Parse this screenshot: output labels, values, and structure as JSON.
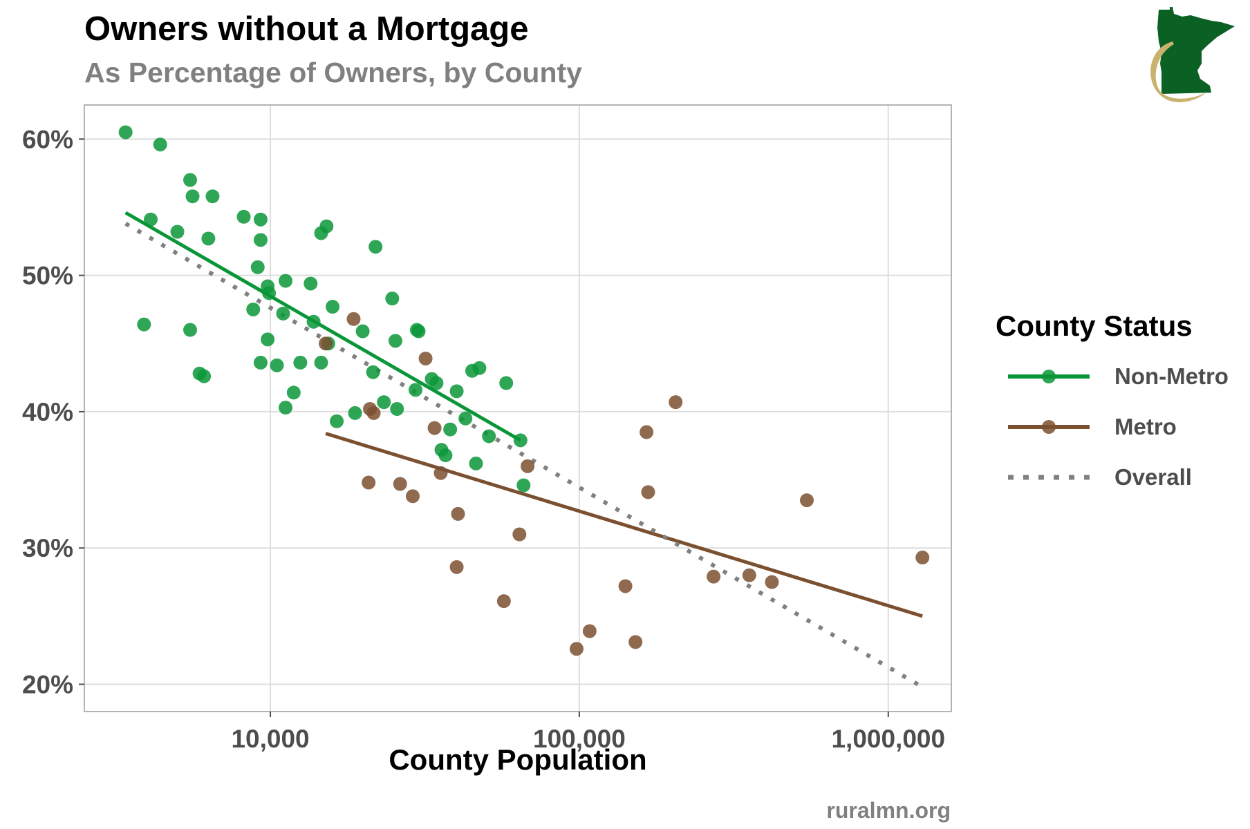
{
  "header": {
    "title": "Owners without a Mortgage",
    "subtitle": "As Percentage of Owners, by County"
  },
  "logo": {
    "icon": "minnesota-state-logo-icon",
    "fill": "#0b6123",
    "swoosh": "#c9b26d"
  },
  "caption": "ruralmn.org",
  "legend": {
    "title": "County Status",
    "items": [
      {
        "label": "Non-Metro",
        "key": "line-point",
        "color": "#0a9638"
      },
      {
        "label": "Metro",
        "key": "line-point",
        "color": "#7b5030"
      },
      {
        "label": "Overall",
        "key": "dotted-line",
        "color": "#808080"
      }
    ]
  },
  "chart_data": {
    "type": "scatter",
    "title": "Owners without a Mortgage",
    "subtitle": "As Percentage of Owners, by County",
    "xlabel": "County Population",
    "ylabel": "",
    "x_scale": "log10",
    "xlim": [
      2500,
      1600000
    ],
    "ylim": [
      18,
      62.5
    ],
    "x_ticks": [
      10000,
      100000,
      1000000
    ],
    "x_tick_labels": [
      "10,000",
      "100,000",
      "1,000,000"
    ],
    "y_ticks": [
      20,
      30,
      40,
      50,
      60
    ],
    "y_tick_labels": [
      "20%",
      "30%",
      "40%",
      "50%",
      "60%"
    ],
    "grid": true,
    "legend_position": "right",
    "series": [
      {
        "name": "Non-Metro",
        "color": "#0a9638",
        "points": [
          [
            3400,
            60.5
          ],
          [
            4400,
            59.6
          ],
          [
            3900,
            46.4
          ],
          [
            4100,
            54.1
          ],
          [
            5000,
            53.2
          ],
          [
            5500,
            57.0
          ],
          [
            5600,
            55.8
          ],
          [
            6500,
            55.8
          ],
          [
            6300,
            52.7
          ],
          [
            5500,
            46.0
          ],
          [
            5900,
            42.8
          ],
          [
            6100,
            42.6
          ],
          [
            8200,
            54.3
          ],
          [
            9300,
            54.1
          ],
          [
            9300,
            52.6
          ],
          [
            9100,
            50.6
          ],
          [
            9800,
            49.2
          ],
          [
            9900,
            48.7
          ],
          [
            8800,
            47.5
          ],
          [
            9800,
            45.3
          ],
          [
            9300,
            43.6
          ],
          [
            10500,
            43.4
          ],
          [
            11000,
            47.2
          ],
          [
            11200,
            49.6
          ],
          [
            11200,
            40.3
          ],
          [
            11900,
            41.4
          ],
          [
            12500,
            43.6
          ],
          [
            13500,
            49.4
          ],
          [
            13800,
            46.6
          ],
          [
            14600,
            53.1
          ],
          [
            15200,
            53.6
          ],
          [
            14600,
            43.6
          ],
          [
            15400,
            45.0
          ],
          [
            15900,
            47.7
          ],
          [
            16400,
            39.3
          ],
          [
            18800,
            39.9
          ],
          [
            19900,
            45.9
          ],
          [
            21900,
            52.1
          ],
          [
            21500,
            42.9
          ],
          [
            23300,
            40.7
          ],
          [
            24800,
            48.3
          ],
          [
            25400,
            45.2
          ],
          [
            25700,
            40.2
          ],
          [
            29800,
            46.0
          ],
          [
            30200,
            45.9
          ],
          [
            29500,
            41.6
          ],
          [
            33300,
            42.4
          ],
          [
            34500,
            42.1
          ],
          [
            35800,
            37.2
          ],
          [
            36900,
            36.8
          ],
          [
            38200,
            38.7
          ],
          [
            40100,
            41.5
          ],
          [
            42800,
            39.5
          ],
          [
            45000,
            43.0
          ],
          [
            47500,
            43.2
          ],
          [
            46300,
            36.2
          ],
          [
            51000,
            38.2
          ],
          [
            58000,
            42.1
          ],
          [
            64500,
            37.9
          ],
          [
            66000,
            34.6
          ]
        ]
      },
      {
        "name": "Metro",
        "color": "#7b5030",
        "points": [
          [
            15100,
            45.0
          ],
          [
            18600,
            46.8
          ],
          [
            20800,
            34.8
          ],
          [
            21000,
            40.2
          ],
          [
            21600,
            39.9
          ],
          [
            26300,
            34.7
          ],
          [
            28900,
            33.8
          ],
          [
            31800,
            43.9
          ],
          [
            34000,
            38.8
          ],
          [
            35600,
            35.5
          ],
          [
            40500,
            32.5
          ],
          [
            40100,
            28.6
          ],
          [
            57000,
            26.1
          ],
          [
            64000,
            31.0
          ],
          [
            68000,
            36.0
          ],
          [
            98000,
            22.6
          ],
          [
            108000,
            23.9
          ],
          [
            141000,
            27.2
          ],
          [
            152000,
            23.1
          ],
          [
            165000,
            38.5
          ],
          [
            167000,
            34.1
          ],
          [
            205000,
            40.7
          ],
          [
            272000,
            27.9
          ],
          [
            355000,
            28.0
          ],
          [
            420000,
            27.5
          ],
          [
            545000,
            33.5
          ],
          [
            1290000,
            29.3
          ]
        ]
      }
    ],
    "trend_lines": [
      {
        "name": "Non-Metro",
        "color": "#0a9638",
        "from": [
          3400,
          54.6
        ],
        "to": [
          64500,
          37.9
        ]
      },
      {
        "name": "Metro",
        "color": "#7b5030",
        "from": [
          15100,
          38.4
        ],
        "to": [
          1290000,
          25.0
        ]
      },
      {
        "name": "Overall",
        "color": "#808080",
        "style": "dotted",
        "from": [
          3400,
          53.8
        ],
        "to": [
          1290000,
          19.8
        ]
      }
    ]
  }
}
